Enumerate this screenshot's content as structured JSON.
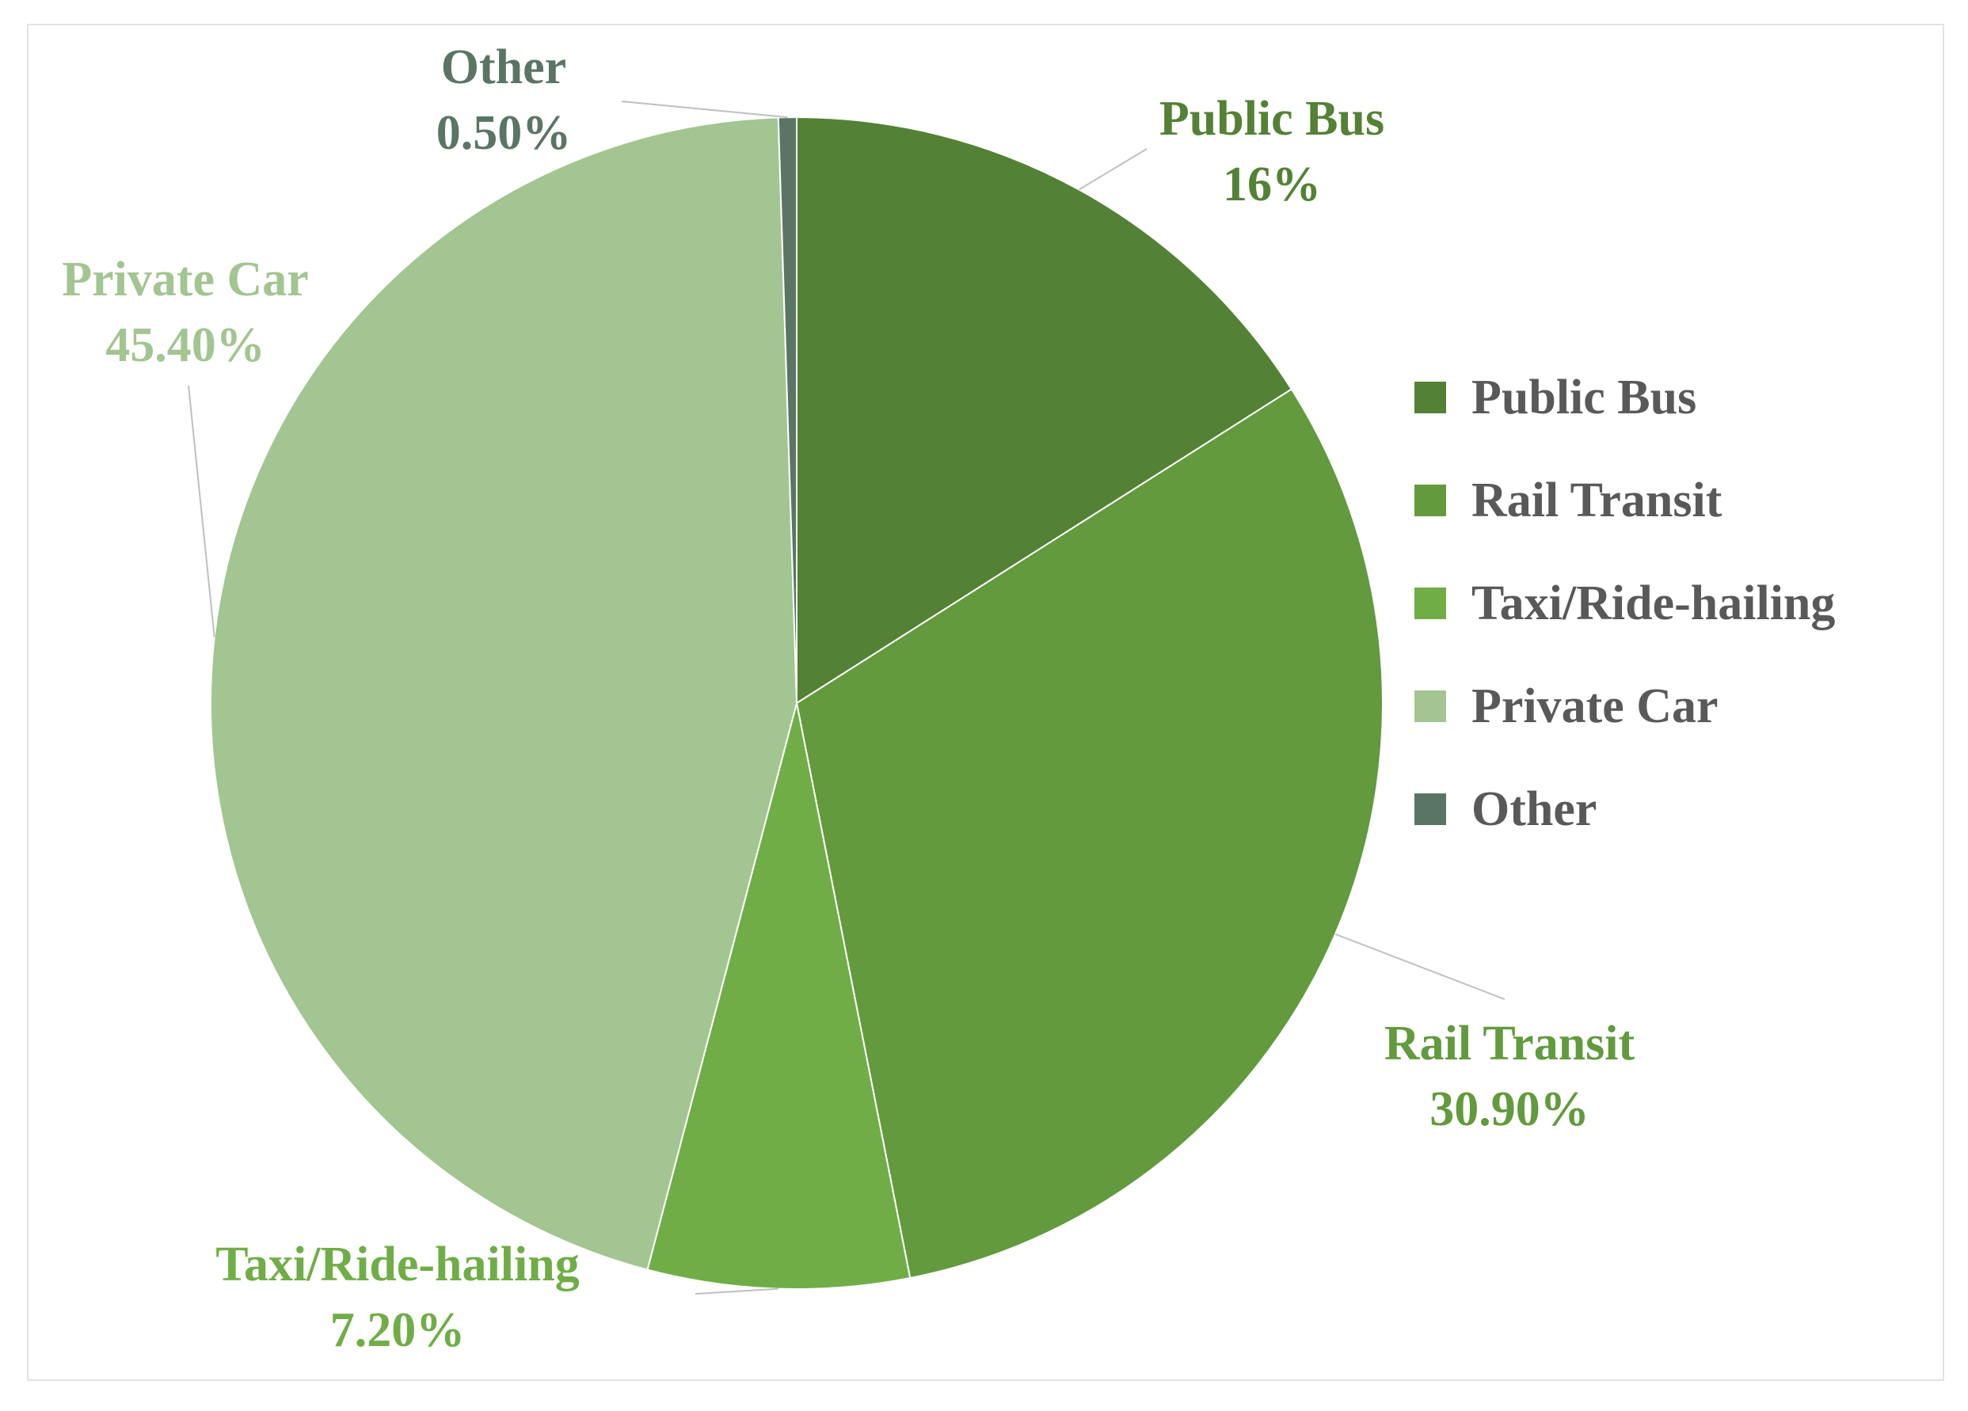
{
  "chart_data": {
    "type": "pie",
    "title": "",
    "legend_position": "right",
    "slices": [
      {
        "name": "Public Bus",
        "value": 16.0,
        "label": "16%",
        "color": "#538135"
      },
      {
        "name": "Rail Transit",
        "value": 30.9,
        "label": "30.90%",
        "color": "#629a3d"
      },
      {
        "name": "Taxi/Ride-hailing",
        "value": 7.2,
        "label": "7.20%",
        "color": "#70ad47"
      },
      {
        "name": "Private Car",
        "value": 45.4,
        "label": "45.40%",
        "color": "#a2c591"
      },
      {
        "name": "Other",
        "value": 0.5,
        "label": "0.50%",
        "color": "#5a7564"
      }
    ],
    "legend": [
      "Public Bus",
      "Rail Transit",
      "Taxi/Ride-hailing",
      "Private Car",
      "Other"
    ]
  }
}
